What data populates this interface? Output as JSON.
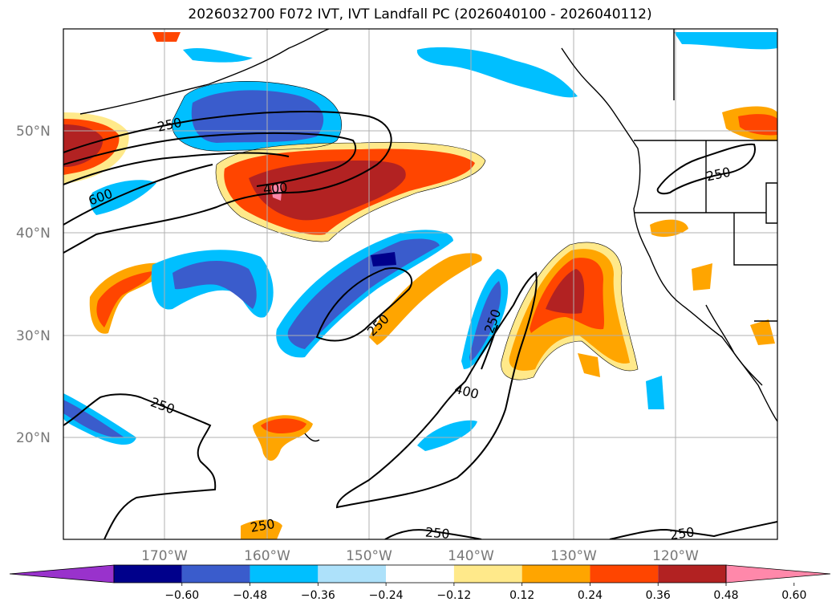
{
  "title": "2026032700 F072 IVT, IVT Landfall PC (2026040100 - 2026040112)",
  "lat_labels": [
    "50°N",
    "40°N",
    "30°N",
    "20°N"
  ],
  "lon_labels": [
    "170°W",
    "160°W",
    "150°W",
    "140°W",
    "130°W",
    "120°W"
  ],
  "colorbar": {
    "colors": [
      "#9932CC",
      "#00008B",
      "#3A5CCC",
      "#00BFFF",
      "#ADE1FA",
      "#FFFFFF",
      "#FFE98A",
      "#FFA500",
      "#FF4500",
      "#B22222",
      "#FF88AA"
    ],
    "ticks": [
      "−0.60",
      "−0.48",
      "−0.36",
      "−0.24",
      "−0.12",
      "0.12",
      "0.24",
      "0.36",
      "0.48",
      "0.60"
    ]
  },
  "contour_labels": [
    "250",
    "600",
    "400",
    "250",
    "250",
    "250",
    "400",
    "250",
    "250",
    "250",
    "250"
  ]
}
